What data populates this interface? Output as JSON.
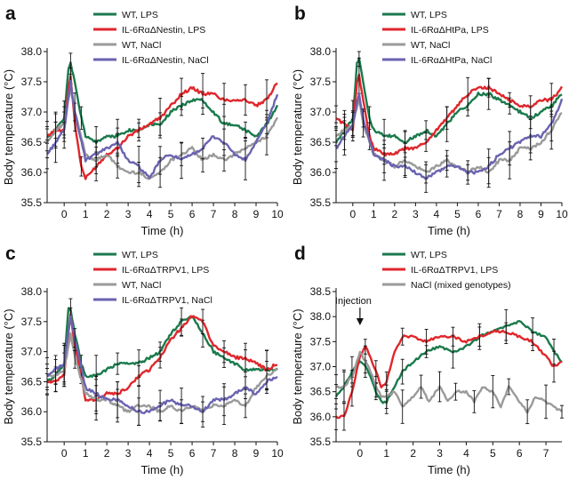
{
  "colors": {
    "wt_lps": "#1a7a4c",
    "ko_lps": "#e0262b",
    "wt_nacl": "#9a9a9a",
    "ko_nacl": "#6a63b0"
  },
  "chart_data": [
    {
      "panel": "a",
      "type": "line",
      "xlabel": "Time (h)",
      "ylabel": "Body temperature (°C)",
      "xlim": [
        -0.8,
        10
      ],
      "ylim": [
        35.5,
        38.0
      ],
      "xticks": [
        "0",
        "1",
        "2",
        "3",
        "4",
        "5",
        "6",
        "7",
        "8",
        "9",
        "10"
      ],
      "yticks": [
        "35.5",
        "36.0",
        "36.5",
        "37.0",
        "37.5",
        "38.0"
      ],
      "legend": [
        "WT, LPS",
        "IL-6RαΔNestin, LPS",
        "WT, NaCl",
        "IL-6RαΔNestin, NaCl"
      ],
      "series": [
        {
          "name": "WT, LPS",
          "color_key": "wt_lps",
          "x": [
            -0.8,
            -0.4,
            0,
            0.2,
            0.3,
            0.5,
            0.8,
            1,
            1.5,
            2,
            2.5,
            3,
            3.5,
            4,
            4.5,
            5,
            5.5,
            6,
            6.5,
            7,
            7.5,
            8,
            8.5,
            9,
            9.5,
            10
          ],
          "y": [
            36.6,
            36.7,
            36.9,
            37.7,
            37.8,
            37.5,
            36.9,
            36.6,
            36.5,
            36.6,
            36.6,
            36.7,
            36.7,
            36.8,
            36.8,
            37.0,
            37.1,
            37.2,
            37.2,
            37.0,
            36.8,
            36.8,
            36.7,
            36.6,
            36.8,
            37.1
          ]
        },
        {
          "name": "IL-6RαΔNestin, LPS",
          "color_key": "ko_lps",
          "x": [
            -0.8,
            -0.4,
            0,
            0.2,
            0.3,
            0.5,
            0.8,
            1,
            1.5,
            2,
            2.5,
            3,
            3.5,
            4,
            4.5,
            5,
            5.5,
            6,
            6.5,
            7,
            7.5,
            8,
            8.5,
            9,
            9.5,
            10
          ],
          "y": [
            36.6,
            36.7,
            36.7,
            37.4,
            37.6,
            36.8,
            36.1,
            35.9,
            36.1,
            36.3,
            36.4,
            36.6,
            36.7,
            36.8,
            36.9,
            37.1,
            37.3,
            37.4,
            37.3,
            37.3,
            37.2,
            37.2,
            37.2,
            37.1,
            37.2,
            37.5
          ]
        },
        {
          "name": "WT, NaCl",
          "color_key": "wt_nacl",
          "x": [
            -0.8,
            -0.4,
            0,
            0.3,
            0.5,
            1,
            1.5,
            2,
            2.5,
            3,
            3.5,
            4,
            4.5,
            5,
            5.5,
            6,
            6.5,
            7,
            7.5,
            8,
            8.5,
            9,
            9.5,
            10
          ],
          "y": [
            36.5,
            36.7,
            36.8,
            37.4,
            37.0,
            36.3,
            36.2,
            36.3,
            36.1,
            36.0,
            36.0,
            35.9,
            36.0,
            36.2,
            36.3,
            36.4,
            36.2,
            36.3,
            36.2,
            36.3,
            36.4,
            36.5,
            36.6,
            36.9
          ]
        },
        {
          "name": "IL-6RαΔNestin, NaCl",
          "color_key": "ko_nacl",
          "x": [
            -0.8,
            -0.4,
            0,
            0.3,
            0.5,
            1,
            1.5,
            2,
            2.5,
            3,
            3.5,
            4,
            4.5,
            5,
            5.5,
            6,
            6.5,
            7,
            7.5,
            8,
            8.5,
            9,
            9.5,
            10
          ],
          "y": [
            36.3,
            36.5,
            36.7,
            37.5,
            37.0,
            36.2,
            36.3,
            36.4,
            36.5,
            36.2,
            36.1,
            35.9,
            36.2,
            36.3,
            36.2,
            36.3,
            36.4,
            36.6,
            36.5,
            36.3,
            36.2,
            36.5,
            36.8,
            37.3
          ]
        }
      ]
    },
    {
      "panel": "b",
      "type": "line",
      "xlabel": "Time (h)",
      "ylabel": "Body temperature (°C)",
      "xlim": [
        -0.8,
        10
      ],
      "ylim": [
        35.5,
        38.0
      ],
      "xticks": [
        "0",
        "1",
        "2",
        "3",
        "4",
        "5",
        "6",
        "7",
        "8",
        "9",
        "10"
      ],
      "yticks": [
        "35.5",
        "36.0",
        "36.5",
        "37.0",
        "37.5",
        "38.0"
      ],
      "legend": [
        "WT, LPS",
        "IL-6RαΔHtPa, LPS",
        "WT, NaCl",
        "IL-6RαΔHtPa, NaCl"
      ],
      "series": [
        {
          "name": "WT, LPS",
          "color_key": "wt_lps",
          "x": [
            -0.8,
            -0.4,
            0,
            0.2,
            0.3,
            0.5,
            0.8,
            1,
            1.5,
            2,
            2.5,
            3,
            3.5,
            4,
            4.5,
            5,
            5.5,
            6,
            6.5,
            7,
            7.5,
            8,
            8.5,
            9,
            9.5,
            10
          ],
          "y": [
            36.5,
            36.7,
            36.9,
            37.8,
            37.9,
            37.5,
            36.9,
            36.7,
            36.6,
            36.6,
            36.5,
            36.6,
            36.7,
            36.6,
            36.8,
            37.0,
            37.1,
            37.3,
            37.3,
            37.2,
            37.1,
            37.0,
            36.9,
            37.0,
            37.1,
            37.3
          ]
        },
        {
          "name": "IL-6RαΔHtPa, LPS",
          "color_key": "ko_lps",
          "x": [
            -0.8,
            -0.4,
            0,
            0.2,
            0.3,
            0.5,
            0.8,
            1,
            1.5,
            2,
            2.5,
            3,
            3.5,
            4,
            4.5,
            5,
            5.5,
            6,
            6.5,
            7,
            7.5,
            8,
            8.5,
            9,
            9.5,
            10
          ],
          "y": [
            36.9,
            36.8,
            36.7,
            37.5,
            37.6,
            37.2,
            36.6,
            36.4,
            36.3,
            36.3,
            36.4,
            36.4,
            36.5,
            36.7,
            36.9,
            37.1,
            37.3,
            37.4,
            37.4,
            37.3,
            37.2,
            37.1,
            37.1,
            37.2,
            37.2,
            37.4
          ]
        },
        {
          "name": "WT, NaCl",
          "color_key": "wt_nacl",
          "x": [
            -0.8,
            -0.4,
            0,
            0.3,
            0.5,
            1,
            1.5,
            2,
            2.5,
            3,
            3.5,
            4,
            4.5,
            5,
            5.5,
            6,
            6.5,
            7,
            7.5,
            8,
            8.5,
            9,
            9.5,
            10
          ],
          "y": [
            36.6,
            36.7,
            36.8,
            37.2,
            36.8,
            36.3,
            36.2,
            36.1,
            36.2,
            36.1,
            36.0,
            36.1,
            36.2,
            36.1,
            36.0,
            36.1,
            36.0,
            36.2,
            36.2,
            36.4,
            36.4,
            36.5,
            36.7,
            37.0
          ]
        },
        {
          "name": "IL-6RαΔHtPa, NaCl",
          "color_key": "ko_nacl",
          "x": [
            -0.8,
            -0.4,
            0,
            0.3,
            0.5,
            1,
            1.5,
            2,
            2.5,
            3,
            3.5,
            4,
            4.5,
            5,
            5.5,
            6,
            6.5,
            7,
            7.5,
            8,
            8.5,
            9,
            9.5,
            10
          ],
          "y": [
            36.4,
            36.6,
            36.8,
            37.3,
            36.9,
            36.3,
            36.2,
            36.1,
            36.1,
            36.0,
            35.9,
            36.0,
            36.1,
            36.1,
            36.0,
            36.0,
            36.1,
            36.3,
            36.4,
            36.5,
            36.6,
            36.6,
            36.8,
            37.2
          ]
        }
      ]
    },
    {
      "panel": "c",
      "type": "line",
      "xlabel": "Time (h)",
      "ylabel": "Body temperature (°C)",
      "xlim": [
        -0.8,
        10
      ],
      "ylim": [
        35.5,
        38.0
      ],
      "xticks": [
        "0",
        "1",
        "2",
        "3",
        "4",
        "5",
        "6",
        "7",
        "8",
        "9",
        "10"
      ],
      "yticks": [
        "35.5",
        "36.0",
        "36.5",
        "37.0",
        "37.5",
        "38.0"
      ],
      "legend": [
        "WT, LPS",
        "IL-6RαΔTRPV1, LPS",
        "WT, NaCl",
        "IL-6RαΔTRPV1, NaCl"
      ],
      "series": [
        {
          "name": "WT, LPS",
          "color_key": "wt_lps",
          "x": [
            -0.8,
            -0.4,
            0,
            0.2,
            0.3,
            0.5,
            0.8,
            1,
            1.5,
            2,
            2.5,
            3,
            3.5,
            4,
            4.5,
            5,
            5.5,
            6,
            6.5,
            7,
            7.5,
            8,
            8.5,
            9,
            9.5,
            10
          ],
          "y": [
            36.5,
            36.6,
            36.8,
            37.7,
            37.7,
            37.3,
            36.8,
            36.6,
            36.6,
            36.7,
            36.8,
            36.8,
            36.8,
            36.9,
            37.0,
            37.3,
            37.5,
            37.6,
            37.3,
            37.0,
            36.9,
            36.8,
            36.7,
            36.7,
            36.7,
            36.7
          ]
        },
        {
          "name": "IL-6RαΔTRPV1, LPS",
          "color_key": "ko_lps",
          "x": [
            -0.8,
            -0.4,
            0,
            0.2,
            0.3,
            0.5,
            0.8,
            1,
            1.5,
            2,
            2.5,
            3,
            3.5,
            4,
            4.5,
            5,
            5.5,
            6,
            6.5,
            7,
            7.5,
            8,
            8.5,
            9,
            9.5,
            10
          ],
          "y": [
            36.5,
            36.5,
            36.6,
            37.3,
            37.6,
            37.1,
            36.6,
            36.2,
            36.2,
            36.3,
            36.3,
            36.4,
            36.6,
            36.7,
            36.9,
            37.2,
            37.4,
            37.6,
            37.5,
            37.1,
            37.0,
            36.9,
            36.9,
            36.8,
            36.7,
            36.8
          ]
        },
        {
          "name": "WT, NaCl",
          "color_key": "wt_nacl",
          "x": [
            -0.8,
            -0.4,
            0,
            0.3,
            0.5,
            1,
            1.5,
            2,
            2.5,
            3,
            3.5,
            4,
            4.5,
            5,
            5.5,
            6,
            6.5,
            7,
            7.5,
            8,
            8.5,
            9,
            9.5,
            10
          ],
          "y": [
            36.6,
            36.6,
            36.7,
            37.3,
            36.9,
            36.3,
            36.2,
            36.2,
            36.1,
            36.0,
            36.1,
            36.1,
            36.0,
            36.1,
            36.0,
            36.1,
            36.0,
            36.1,
            36.1,
            36.2,
            36.1,
            36.4,
            36.6,
            36.7
          ]
        },
        {
          "name": "IL-6RαΔTRPV1, NaCl",
          "color_key": "ko_nacl",
          "x": [
            -0.8,
            -0.4,
            0,
            0.3,
            0.5,
            1,
            1.5,
            2,
            2.5,
            3,
            3.5,
            4,
            4.5,
            5,
            5.5,
            6,
            6.5,
            7,
            7.5,
            8,
            8.5,
            9,
            9.5,
            10
          ],
          "y": [
            36.6,
            36.7,
            36.8,
            37.6,
            37.2,
            36.4,
            36.3,
            36.2,
            36.2,
            36.1,
            36.0,
            36.0,
            36.1,
            36.2,
            36.1,
            36.1,
            36.0,
            36.2,
            36.2,
            36.3,
            36.4,
            36.3,
            36.5,
            36.6
          ]
        }
      ]
    },
    {
      "panel": "d",
      "type": "line",
      "xlabel": "Time (h)",
      "ylabel": "Body temperature (°C)",
      "xlim": [
        -0.9,
        7.6
      ],
      "ylim": [
        35.5,
        38.5
      ],
      "xticks": [
        "0",
        "1",
        "2",
        "3",
        "4",
        "5",
        "6",
        "7"
      ],
      "yticks": [
        "35.5",
        "36.0",
        "36.5",
        "37.0",
        "37.5",
        "38.0",
        "38.5"
      ],
      "legend": [
        "WT, LPS",
        "IL-6RαΔTRPV1, LPS",
        "NaCl (mixed genotypes)"
      ],
      "annotation": {
        "text": "Injection",
        "x": 0
      },
      "series": [
        {
          "name": "WT, LPS",
          "color_key": "wt_lps",
          "x": [
            -0.9,
            -0.6,
            -0.3,
            0,
            0.2,
            0.4,
            0.6,
            0.8,
            1,
            1.3,
            1.6,
            2,
            2.5,
            3,
            3.5,
            4,
            4.5,
            5,
            5.5,
            6,
            6.5,
            7,
            7.3,
            7.6
          ],
          "y": [
            36.4,
            36.6,
            36.9,
            37.1,
            37.0,
            36.8,
            36.5,
            36.3,
            36.3,
            36.6,
            36.9,
            37.1,
            37.3,
            37.4,
            37.3,
            37.4,
            37.6,
            37.7,
            37.8,
            37.9,
            37.7,
            37.6,
            37.3,
            37.1
          ]
        },
        {
          "name": "IL-6RαΔTRPV1, LPS",
          "color_key": "ko_lps",
          "x": [
            -0.9,
            -0.6,
            -0.3,
            0,
            0.2,
            0.4,
            0.6,
            0.8,
            1,
            1.3,
            1.6,
            2,
            2.5,
            3,
            3.5,
            4,
            4.5,
            5,
            5.5,
            6,
            6.5,
            7,
            7.3,
            7.6
          ],
          "y": [
            36.0,
            36.0,
            36.5,
            37.2,
            37.4,
            37.2,
            36.9,
            36.6,
            36.7,
            37.3,
            37.6,
            37.6,
            37.5,
            37.6,
            37.6,
            37.5,
            37.6,
            37.7,
            37.7,
            37.6,
            37.5,
            37.2,
            37.0,
            37.1
          ]
        },
        {
          "name": "NaCl (mixed genotypes)",
          "color_key": "wt_nacl",
          "x": [
            -0.9,
            -0.6,
            -0.3,
            0,
            0.2,
            0.4,
            0.6,
            0.8,
            1,
            1.3,
            1.6,
            2,
            2.3,
            2.6,
            3,
            3.3,
            3.6,
            4,
            4.3,
            4.6,
            5,
            5.3,
            5.6,
            6,
            6.3,
            6.6,
            7,
            7.3,
            7.6
          ],
          "y": [
            36.6,
            36.6,
            36.8,
            37.3,
            37.1,
            36.9,
            36.6,
            36.4,
            36.4,
            36.5,
            36.2,
            36.4,
            36.6,
            36.3,
            36.6,
            36.3,
            36.5,
            36.5,
            36.3,
            36.6,
            36.5,
            36.2,
            36.6,
            36.3,
            36.1,
            36.4,
            36.3,
            36.2,
            36.1
          ]
        }
      ]
    }
  ]
}
